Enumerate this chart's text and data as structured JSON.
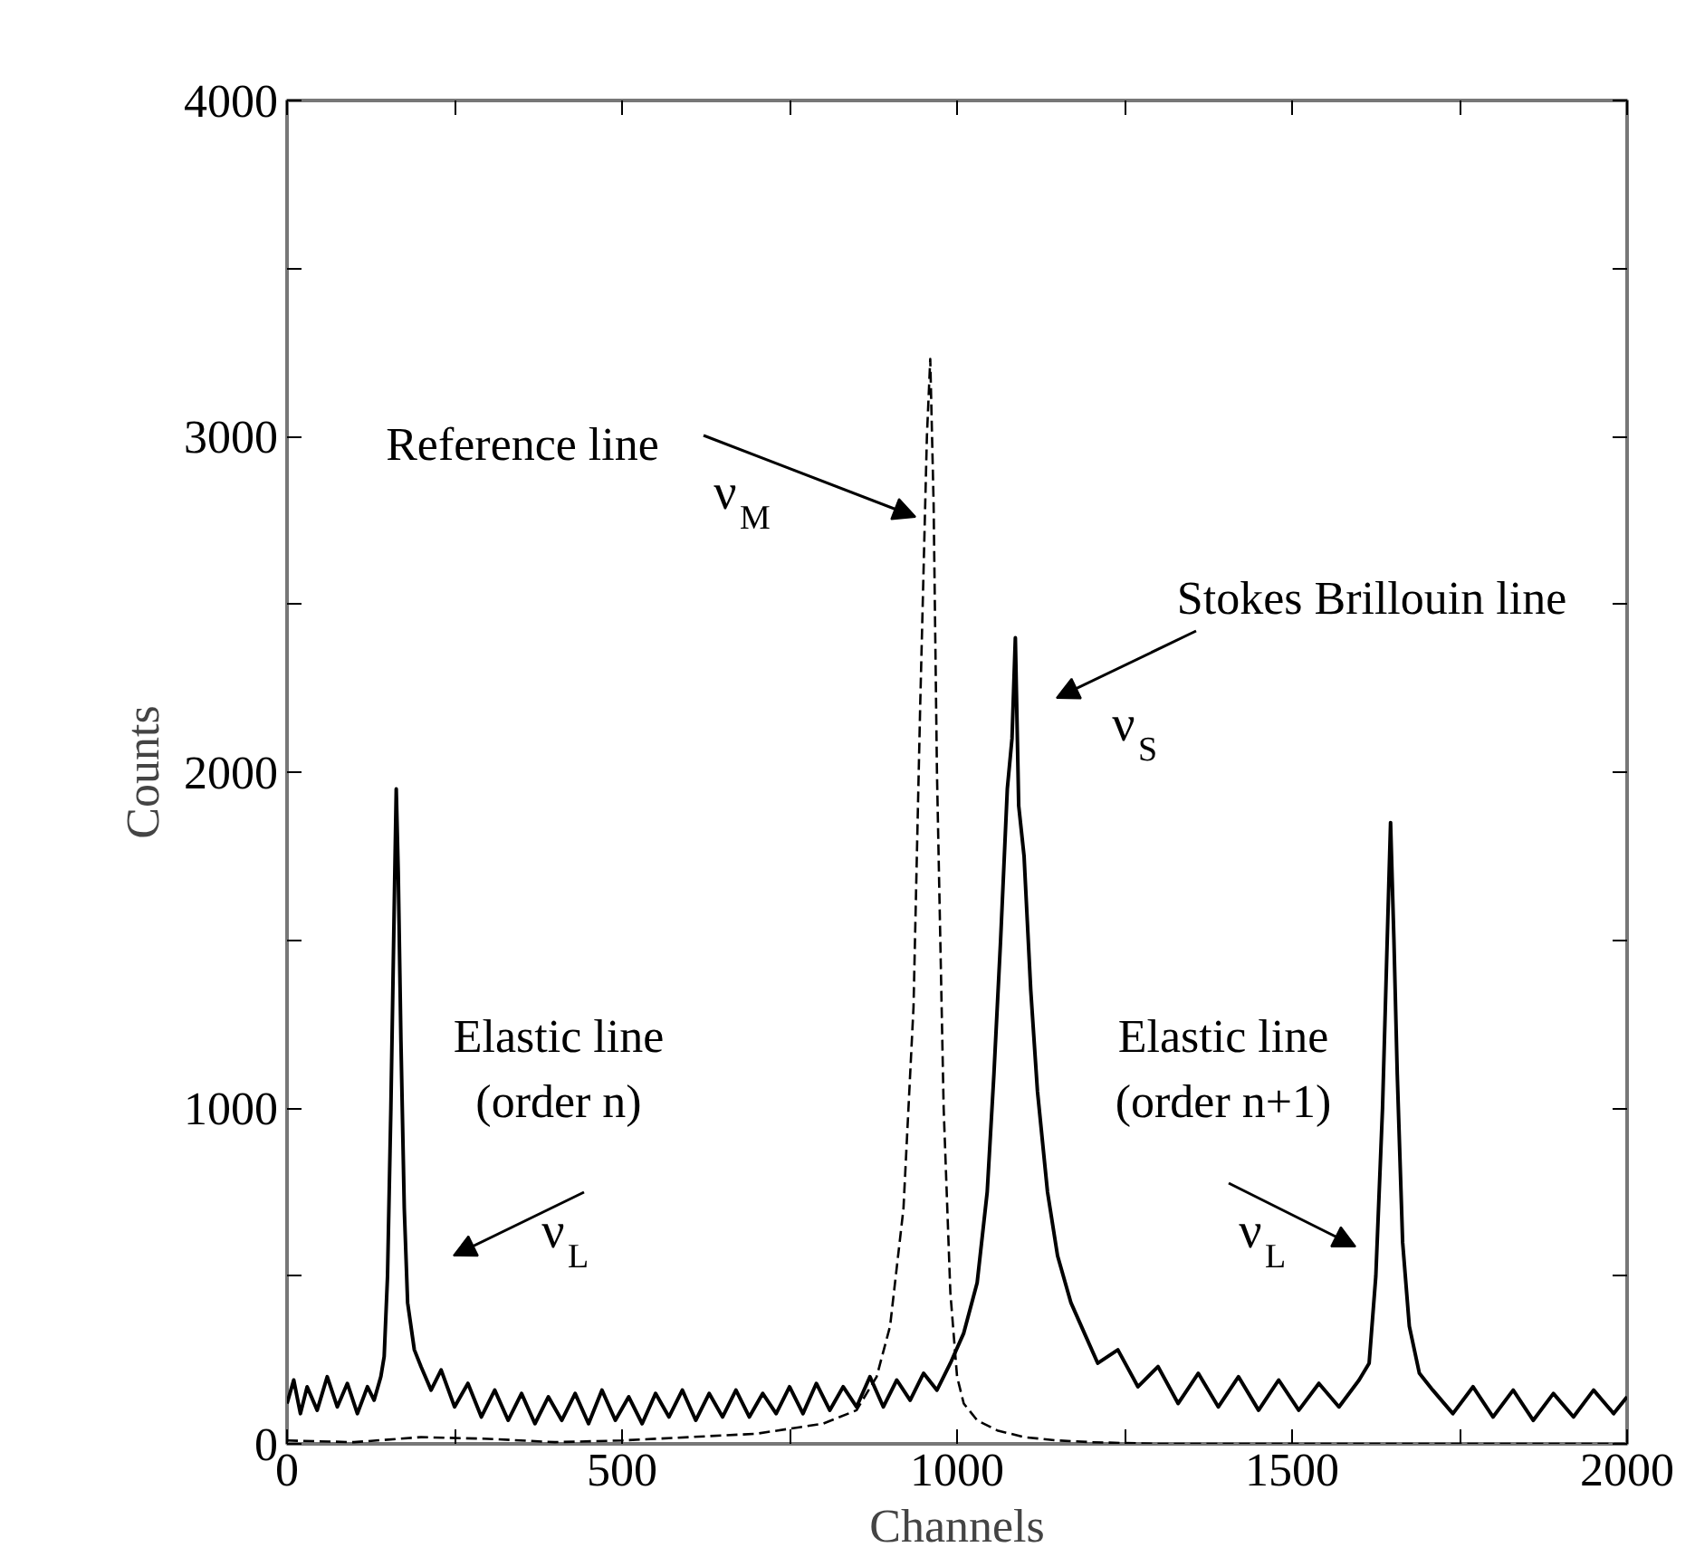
{
  "chart_data": {
    "type": "line",
    "xlabel": "Channels",
    "ylabel": "Counts",
    "xlim": [
      0,
      2000
    ],
    "ylim": [
      0,
      4000
    ],
    "xticks": [
      0,
      {
        "value": 250,
        "label": null
      },
      500,
      {
        "value": 750,
        "label": null
      },
      1000,
      {
        "value": 1250,
        "label": null
      },
      1500,
      {
        "value": 1750,
        "label": null
      },
      2000
    ],
    "yticks": [
      0,
      {
        "value": 500,
        "label": null
      },
      1000,
      {
        "value": 1500,
        "label": null
      },
      2000,
      {
        "value": 2500,
        "label": null
      },
      3000,
      {
        "value": 3500,
        "label": null
      },
      4000
    ],
    "grid": false,
    "marker": "none",
    "series": [
      {
        "color": "#000000",
        "line_style": "solid",
        "x": [
          0,
          10,
          20,
          30,
          45,
          60,
          75,
          90,
          105,
          120,
          130,
          140,
          145,
          150,
          155,
          160,
          163,
          166,
          170,
          175,
          180,
          190,
          200,
          215,
          230,
          250,
          270,
          290,
          310,
          330,
          350,
          370,
          390,
          410,
          430,
          450,
          470,
          490,
          510,
          530,
          550,
          570,
          590,
          610,
          630,
          650,
          670,
          690,
          710,
          730,
          750,
          770,
          790,
          810,
          830,
          850,
          870,
          890,
          910,
          930,
          950,
          970,
          990,
          1010,
          1030,
          1045,
          1055,
          1065,
          1075,
          1082,
          1087,
          1092,
          1100,
          1110,
          1120,
          1135,
          1150,
          1170,
          1190,
          1210,
          1240,
          1270,
          1300,
          1330,
          1360,
          1390,
          1420,
          1450,
          1480,
          1510,
          1540,
          1570,
          1600,
          1615,
          1625,
          1635,
          1642,
          1647,
          1652,
          1657,
          1665,
          1675,
          1690,
          1710,
          1740,
          1770,
          1800,
          1830,
          1860,
          1890,
          1920,
          1950,
          1980,
          2000
        ],
        "values": [
          120,
          190,
          90,
          170,
          100,
          200,
          110,
          180,
          90,
          170,
          130,
          200,
          260,
          500,
          1000,
          1600,
          1950,
          1700,
          1200,
          700,
          420,
          280,
          230,
          160,
          220,
          110,
          180,
          80,
          160,
          70,
          150,
          60,
          140,
          70,
          150,
          60,
          160,
          70,
          140,
          60,
          150,
          80,
          160,
          70,
          150,
          80,
          160,
          80,
          150,
          90,
          170,
          90,
          180,
          100,
          170,
          110,
          200,
          110,
          190,
          130,
          210,
          160,
          240,
          330,
          480,
          750,
          1100,
          1500,
          1950,
          2100,
          2400,
          1900,
          1750,
          1350,
          1050,
          750,
          560,
          420,
          330,
          240,
          280,
          170,
          230,
          120,
          210,
          110,
          200,
          100,
          190,
          100,
          180,
          110,
          190,
          240,
          500,
          1000,
          1500,
          1850,
          1500,
          1100,
          600,
          350,
          210,
          160,
          90,
          170,
          80,
          160,
          70,
          150,
          80,
          160,
          90,
          140
        ]
      },
      {
        "color": "#000000",
        "line_style": "dashed",
        "x": [
          0,
          100,
          200,
          300,
          400,
          500,
          600,
          700,
          800,
          850,
          880,
          900,
          920,
          935,
          945,
          955,
          960,
          965,
          970,
          980,
          990,
          1000,
          1010,
          1030,
          1060,
          1100,
          1150,
          1200,
          1300,
          1400,
          1500,
          1600,
          1700,
          1800,
          1900,
          2000
        ],
        "values": [
          10,
          5,
          20,
          15,
          5,
          10,
          20,
          30,
          60,
          100,
          200,
          350,
          700,
          1300,
          2200,
          3000,
          3230,
          2800,
          2000,
          1000,
          450,
          200,
          120,
          70,
          40,
          20,
          10,
          5,
          0,
          0,
          0,
          0,
          0,
          0,
          0,
          0
        ]
      }
    ],
    "annotations": [
      "Reference line",
      "ν$_{M}$",
      "Stokes Brillouin line",
      "ν$_{S}$",
      "Elastic line\n(order n)",
      "ν$_{L}$",
      "Elastic line\n(order n+1)",
      "ν$_{L}$"
    ]
  }
}
